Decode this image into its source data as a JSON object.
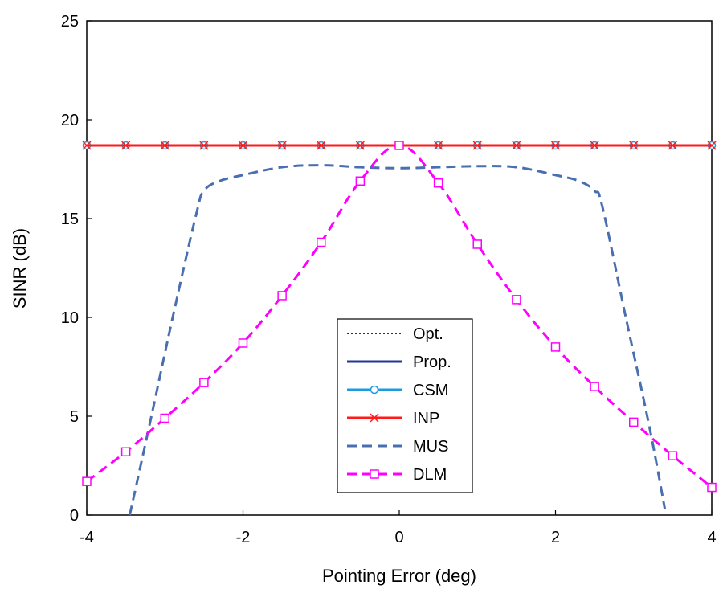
{
  "chart_data": {
    "type": "line",
    "title": "",
    "xlabel": "Pointing Error (deg)",
    "ylabel": "SINR (dB)",
    "xlim": [
      -4,
      4
    ],
    "ylim": [
      0,
      25
    ],
    "xticks": [
      -4,
      -2,
      0,
      2,
      4
    ],
    "yticks": [
      0,
      5,
      10,
      15,
      20,
      25
    ],
    "grid": false,
    "legend_position": "lower-center",
    "series": [
      {
        "name": "Opt.",
        "color": "#333333",
        "style": "dotted",
        "marker": "none",
        "x": [
          -4,
          -3.5,
          -3,
          -2.5,
          -2,
          -1.5,
          -1,
          -0.5,
          0,
          0.5,
          1,
          1.5,
          2,
          2.5,
          3,
          3.5,
          4
        ],
        "y": [
          18.7,
          18.7,
          18.7,
          18.7,
          18.7,
          18.7,
          18.7,
          18.7,
          18.7,
          18.7,
          18.7,
          18.7,
          18.7,
          18.7,
          18.7,
          18.7,
          18.7
        ]
      },
      {
        "name": "Prop.",
        "color": "#1f3a93",
        "style": "solid",
        "marker": "none",
        "x": [
          -4,
          -3.5,
          -3,
          -2.5,
          -2,
          -1.5,
          -1,
          -0.5,
          0,
          0.5,
          1,
          1.5,
          2,
          2.5,
          3,
          3.5,
          4
        ],
        "y": [
          18.7,
          18.7,
          18.7,
          18.7,
          18.7,
          18.7,
          18.7,
          18.7,
          18.7,
          18.7,
          18.7,
          18.7,
          18.7,
          18.7,
          18.7,
          18.7,
          18.7
        ]
      },
      {
        "name": "CSM",
        "color": "#1e9be0",
        "style": "solid",
        "marker": "circle",
        "x": [
          -4,
          -3.5,
          -3,
          -2.5,
          -2,
          -1.5,
          -1,
          -0.5,
          0,
          0.5,
          1,
          1.5,
          2,
          2.5,
          3,
          3.5,
          4
        ],
        "y": [
          18.7,
          18.7,
          18.7,
          18.7,
          18.7,
          18.7,
          18.7,
          18.7,
          18.7,
          18.7,
          18.7,
          18.7,
          18.7,
          18.7,
          18.7,
          18.7,
          18.7
        ]
      },
      {
        "name": "INP",
        "color": "#ff1a1a",
        "style": "solid",
        "marker": "x",
        "x": [
          -4,
          -3.5,
          -3,
          -2.5,
          -2,
          -1.5,
          -1,
          -0.5,
          0,
          0.5,
          1,
          1.5,
          2,
          2.5,
          3,
          3.5,
          4
        ],
        "y": [
          18.7,
          18.7,
          18.7,
          18.7,
          18.7,
          18.7,
          18.7,
          18.7,
          18.7,
          18.7,
          18.7,
          18.7,
          18.7,
          18.7,
          18.7,
          18.7,
          18.7
        ]
      },
      {
        "name": "MUS",
        "color": "#4a6fb0",
        "style": "dashed",
        "marker": "none",
        "x": [
          -3.45,
          -3.2,
          -2.9,
          -2.6,
          -2.5,
          -2.3,
          -2.0,
          -1.5,
          -1.0,
          -0.5,
          0,
          0.5,
          1.0,
          1.5,
          2.0,
          2.3,
          2.5,
          2.6,
          2.9,
          3.2,
          3.4
        ],
        "y": [
          0.0,
          4.5,
          10.0,
          15.2,
          16.4,
          16.9,
          17.2,
          17.6,
          17.7,
          17.6,
          17.55,
          17.6,
          17.65,
          17.6,
          17.2,
          16.9,
          16.4,
          15.6,
          10.0,
          4.5,
          0.3
        ]
      },
      {
        "name": "DLM",
        "color": "#ff00ff",
        "style": "dashed",
        "marker": "square",
        "x": [
          -4,
          -3.5,
          -3,
          -2.5,
          -2,
          -1.5,
          -1,
          -0.5,
          0,
          0.5,
          1,
          1.5,
          2,
          2.5,
          3,
          3.5,
          4
        ],
        "y": [
          1.7,
          3.2,
          4.9,
          6.7,
          8.7,
          11.1,
          13.8,
          16.9,
          18.7,
          16.8,
          13.7,
          10.9,
          8.5,
          6.5,
          4.7,
          3.0,
          1.4
        ]
      }
    ]
  }
}
